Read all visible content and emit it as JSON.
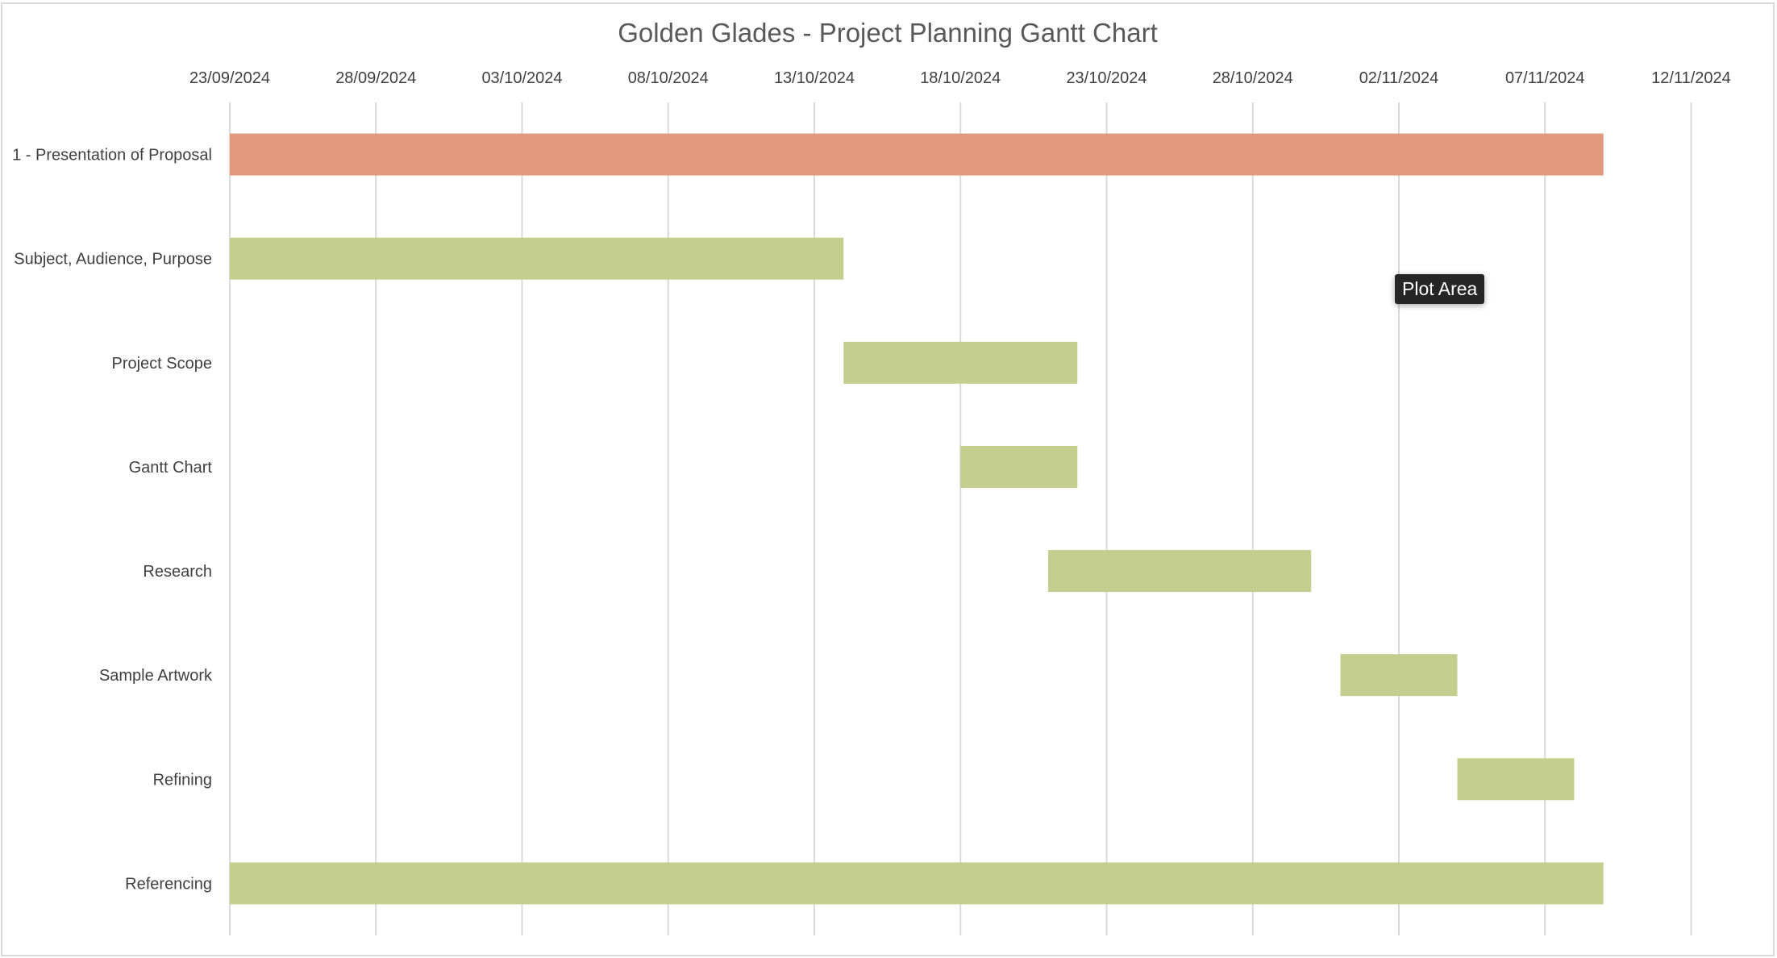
{
  "chart_data": {
    "type": "bar",
    "orientation": "horizontal",
    "stacked_gantt": true,
    "title": "Golden Glades - Project Planning Gantt Chart",
    "xlabel": "",
    "ylabel": "",
    "x_tick_labels": [
      "23/09/2024",
      "28/09/2024",
      "03/10/2024",
      "08/10/2024",
      "13/10/2024",
      "18/10/2024",
      "23/10/2024",
      "28/10/2024",
      "02/11/2024",
      "07/11/2024",
      "12/11/2024"
    ],
    "xlim": [
      "23/09/2024",
      "14/11/2024"
    ],
    "grid": true,
    "legend": "none",
    "tasks": [
      {
        "name": "1 - Presentation of Proposal",
        "start": "23/09/2024",
        "end": "09/11/2024",
        "color": "#E2997E"
      },
      {
        "name": "Subject, Audience, Purpose",
        "start": "23/09/2024",
        "end": "14/10/2024",
        "color": "#C4CF8F"
      },
      {
        "name": "Project Scope",
        "start": "14/10/2024",
        "end": "22/10/2024",
        "color": "#C4CF8F"
      },
      {
        "name": "Gantt Chart",
        "start": "18/10/2024",
        "end": "22/10/2024",
        "color": "#C4CF8F"
      },
      {
        "name": "Research",
        "start": "21/10/2024",
        "end": "30/10/2024",
        "color": "#C4CF8F"
      },
      {
        "name": "Sample Artwork",
        "start": "31/10/2024",
        "end": "04/11/2024",
        "color": "#C4CF8F"
      },
      {
        "name": "Refining",
        "start": "04/11/2024",
        "end": "08/11/2024",
        "color": "#C4CF8F"
      },
      {
        "name": "Referencing",
        "start": "23/09/2024",
        "end": "09/11/2024",
        "color": "#C4CF8F"
      }
    ]
  },
  "tooltip": {
    "text": "Plot Area"
  },
  "colors": {
    "gridline": "#D9D9D9",
    "text": "#404040",
    "title": "#595959",
    "border": "#D9D9D9"
  }
}
